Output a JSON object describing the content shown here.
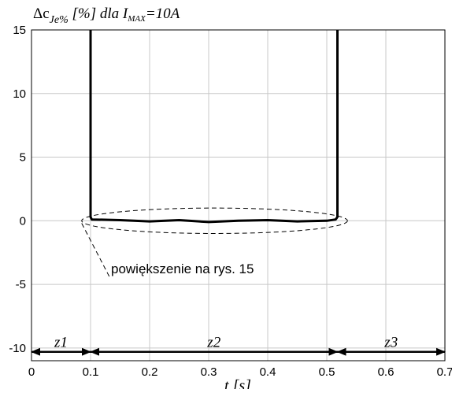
{
  "chart_data": {
    "type": "line",
    "title_parts": {
      "symbol": "Δc",
      "subscript": "Je%",
      "text": " [%] dla I",
      "sub2": "MAX",
      "tail": "=10A"
    },
    "xlabel": "t [s]",
    "ylabel": "",
    "xlim": [
      0,
      0.7
    ],
    "ylim": [
      -11,
      15
    ],
    "xticks": [
      0,
      0.1,
      0.2,
      0.3,
      0.4,
      0.5,
      0.6,
      0.7
    ],
    "yticks": [
      -10,
      -5,
      0,
      5,
      10,
      15
    ],
    "xtick_labels": [
      "0",
      "0.1",
      "0.2",
      "0.3",
      "0.4",
      "0.5",
      "0.6",
      "0.7"
    ],
    "ytick_labels": [
      "-10",
      "-5",
      "0",
      "5",
      "10",
      "15"
    ],
    "grid": true,
    "series": [
      {
        "x": [
          0.1,
          0.1,
          0.102,
          0.15,
          0.2,
          0.25,
          0.3,
          0.35,
          0.4,
          0.45,
          0.5,
          0.515,
          0.518,
          0.518
        ],
        "y": [
          15,
          0.3,
          0.1,
          0.05,
          -0.05,
          0.05,
          -0.1,
          0.0,
          0.05,
          -0.05,
          0.0,
          0.1,
          0.3,
          15
        ]
      }
    ],
    "annotation": {
      "text": "powiększenie na rys. 15",
      "ellipse_center": [
        0.31,
        0
      ],
      "ellipse_rx": 0.225,
      "ellipse_ry": 1.0,
      "leader_from": [
        0.085,
        -0.2
      ],
      "leader_to": [
        0.133,
        -4.5
      ]
    },
    "zones": [
      {
        "label": "z1",
        "x_start": 0,
        "x_end": 0.1
      },
      {
        "label": "z2",
        "x_start": 0.1,
        "x_end": 0.518
      },
      {
        "label": "z3",
        "x_start": 0.518,
        "x_end": 0.7
      }
    ],
    "zone_arrow_y": -10.3
  }
}
